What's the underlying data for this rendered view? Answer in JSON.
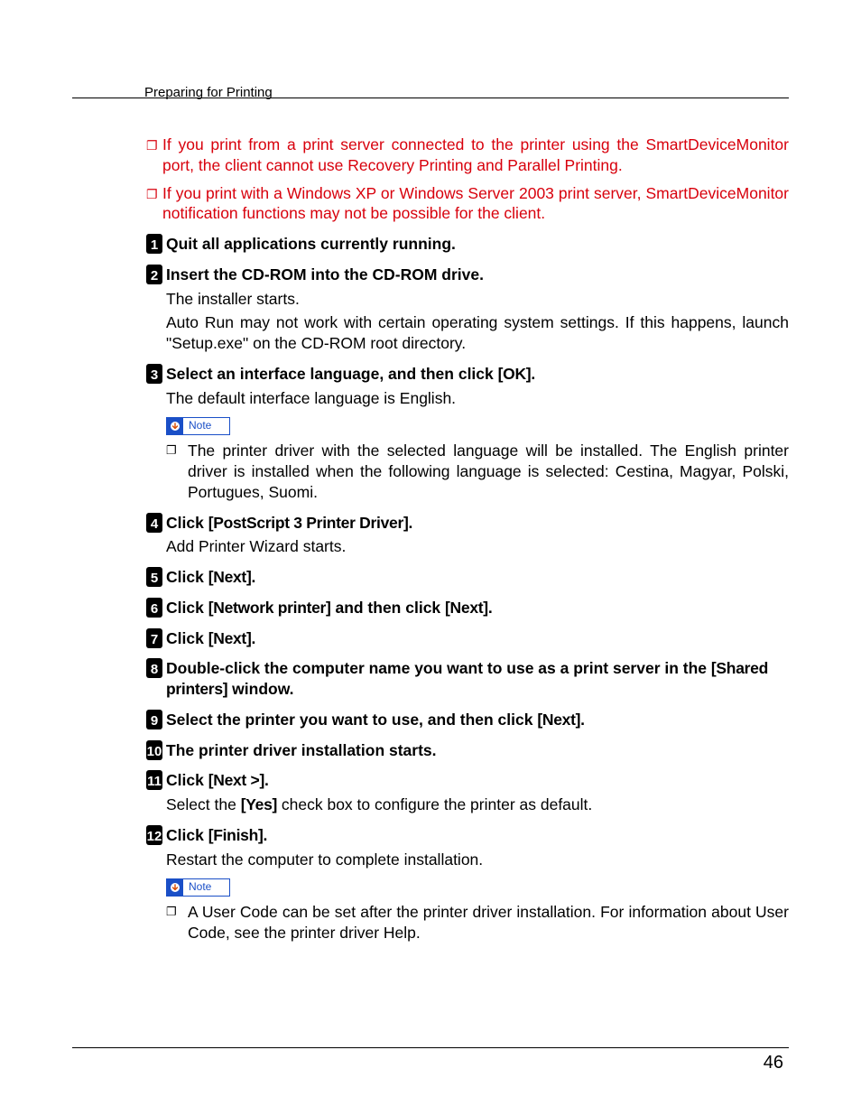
{
  "header": "Preparing for Printing",
  "page_number": "46",
  "colors": {
    "warning": "#d8000c",
    "note_border": "#1a4fc7",
    "text": "#000000",
    "background": "#ffffff"
  },
  "note_label": "Note",
  "warnings": [
    "If you print from a print server connected to the printer using the SmartDeviceMonitor port, the client cannot use Recovery Printing and Parallel Printing.",
    "If you print with a Windows XP or Windows Server 2003 print server, SmartDeviceMonitor notification functions may not be possible for the client."
  ],
  "steps": [
    {
      "num": "1",
      "title": "Quit all applications currently running."
    },
    {
      "num": "2",
      "title": "Insert the CD-ROM into the CD-ROM drive.",
      "body": [
        "The installer starts.",
        "Auto Run may not work with certain operating system settings. If this happens, launch \"Setup.exe\" on the CD-ROM root directory."
      ]
    },
    {
      "num": "3",
      "title_pre": "Select an interface language, and then click ",
      "title_btn": "[OK]",
      "title_post": ".",
      "body": [
        "The default interface language is English."
      ],
      "note": true,
      "sub_bullets": [
        "The printer driver with the selected language will be installed. The English printer driver is installed when the following language is selected: Cestina, Magyar, Polski, Portugues, Suomi."
      ]
    },
    {
      "num": "4",
      "title_pre": "Click ",
      "title_btn": "[PostScript 3 Printer Driver]",
      "title_post": ".",
      "body": [
        "Add Printer Wizard starts."
      ]
    },
    {
      "num": "5",
      "title_pre": "Click ",
      "title_btn": "[Next]",
      "title_post": "."
    },
    {
      "num": "6",
      "title_pre": "Click ",
      "title_btn": "[Network printer]",
      "title_mid": " and then click ",
      "title_btn2": "[Next]",
      "title_post": "."
    },
    {
      "num": "7",
      "title_pre": "Click ",
      "title_btn": "[Next]",
      "title_post": "."
    },
    {
      "num": "8",
      "title_pre": "Double-click the computer name you want to use as a print server in the ",
      "title_btn": "[Shared printers]",
      "title_post": " window."
    },
    {
      "num": "9",
      "title_pre": "Select the printer you want to use, and then click ",
      "title_btn": "[Next]",
      "title_post": "."
    },
    {
      "num": "10",
      "title": "The printer driver installation starts."
    },
    {
      "num": "11",
      "title_pre": "Click ",
      "title_btn": "[Next >]",
      "title_post": ".",
      "body_html": "step11_body"
    },
    {
      "num": "12",
      "title_pre": "Click ",
      "title_btn": "[Finish]",
      "title_post": ".",
      "body": [
        "Restart the computer to complete installation."
      ],
      "note": true,
      "sub_bullets": [
        "A User Code can be set after the printer driver installation. For information about User Code, see the printer driver Help."
      ]
    }
  ],
  "step11_body_pre": "Select the ",
  "step11_body_btn": "[Yes]",
  "step11_body_post": " check box to configure the printer as default."
}
